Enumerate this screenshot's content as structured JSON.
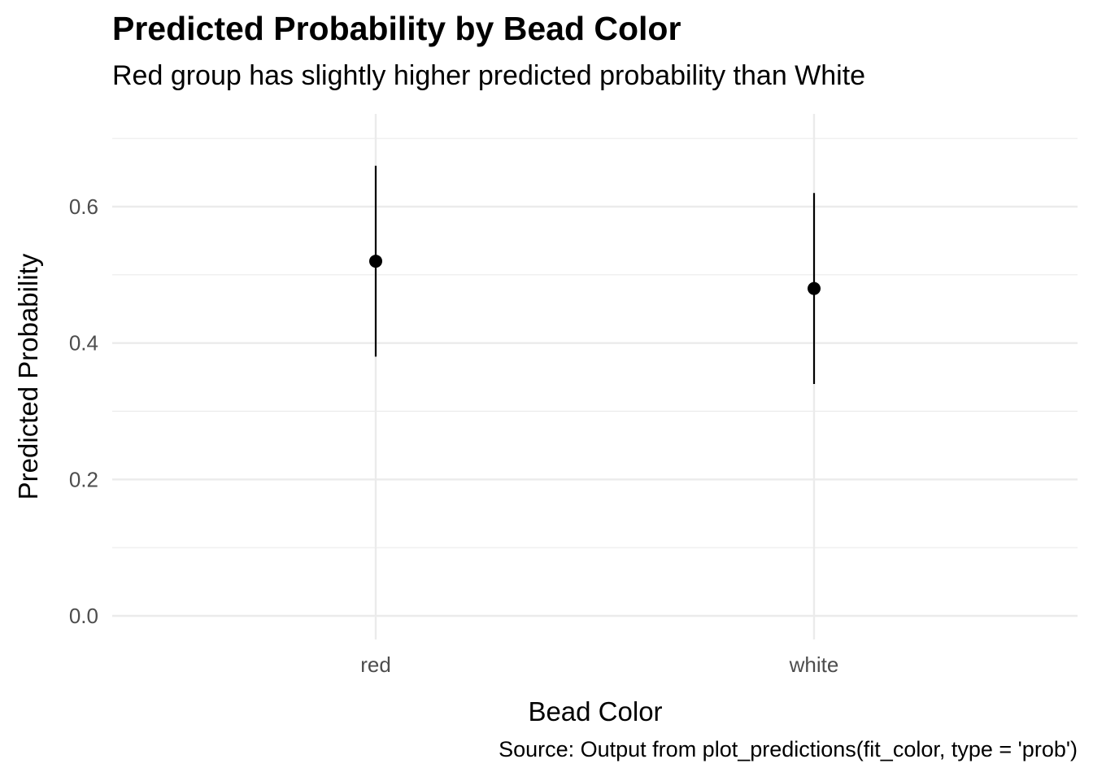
{
  "chart_data": {
    "type": "scatter",
    "title": "Predicted Probability by Bead Color",
    "subtitle": "Red group has slightly higher predicted probability than White",
    "caption": "Source: Output from plot_predictions(fit_color, type = 'prob')",
    "xlabel": "Bead Color",
    "ylabel": "Predicted Probability",
    "categories": [
      "red",
      "white"
    ],
    "series": [
      {
        "values": [
          0.52,
          0.48
        ],
        "lower": [
          0.38,
          0.34
        ],
        "upper": [
          0.66,
          0.62
        ]
      }
    ],
    "ylim": [
      0,
      0.7
    ],
    "yticks": [
      "0.0",
      "0.2",
      "0.4",
      "0.6"
    ],
    "grid": true,
    "legend": "none",
    "colors": {
      "point": "#000000",
      "errorbar": "#000000",
      "grid": "#ebebeb"
    }
  }
}
